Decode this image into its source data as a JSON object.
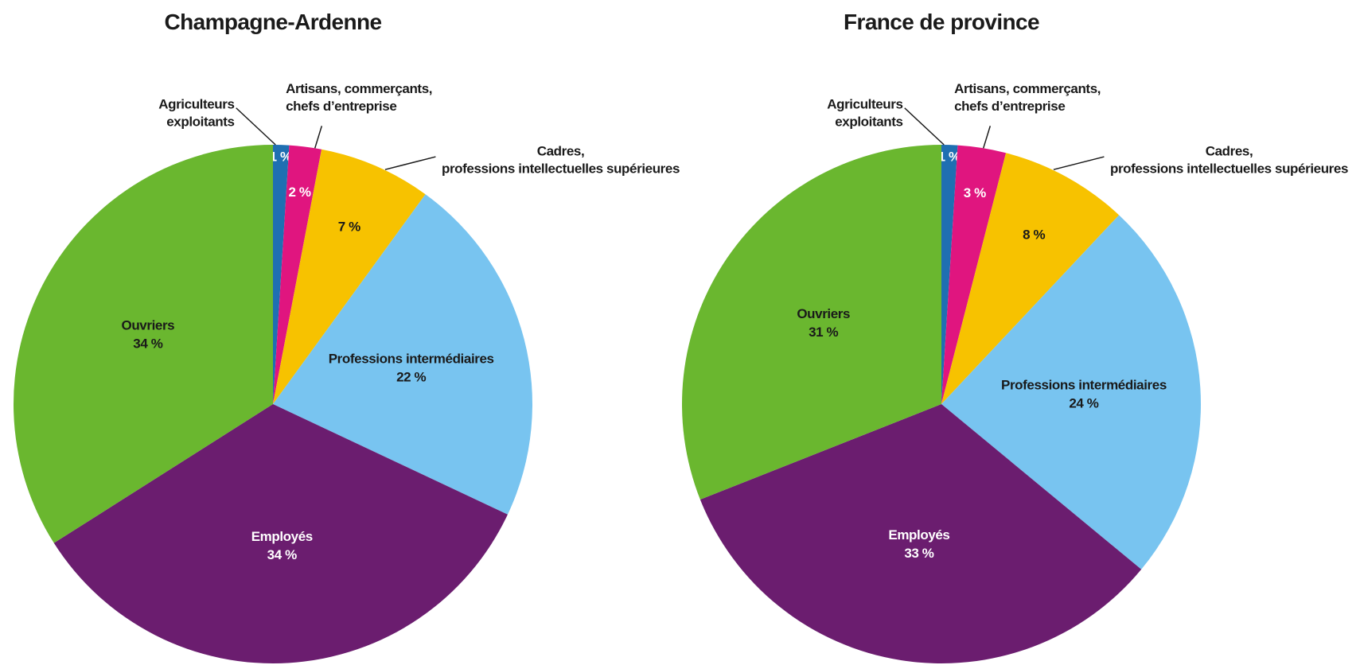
{
  "chart_data": [
    {
      "type": "pie",
      "title": "Champagne-Ardenne",
      "categories": [
        "Agriculteurs\nexploitants",
        "Artisans, commerçants,\nchefs d’entreprise",
        "Cadres,\nprofessions intellectuelles supérieures",
        "Professions intermédiaires",
        "Employés",
        "Ouvriers"
      ],
      "values": [
        1,
        2,
        7,
        22,
        34,
        34
      ],
      "value_labels": [
        "1 %",
        "2 %",
        "7 %",
        "22 %",
        "34 %",
        "34 %"
      ],
      "colors": [
        "#1f6fb2",
        "#e0157f",
        "#f7c200",
        "#78c4f0",
        "#6b1d6f",
        "#6ab72f"
      ]
    },
    {
      "type": "pie",
      "title": "France de province",
      "categories": [
        "Agriculteurs\nexploitants",
        "Artisans, commerçants,\nchefs d’entreprise",
        "Cadres,\nprofessions intellectuelles supérieures",
        "Professions intermédiaires",
        "Employés",
        "Ouvriers"
      ],
      "values": [
        1,
        3,
        8,
        24,
        33,
        31
      ],
      "value_labels": [
        "1 %",
        "3 %",
        "8 %",
        "24 %",
        "33 %",
        "31 %"
      ],
      "colors": [
        "#1f6fb2",
        "#e0157f",
        "#f7c200",
        "#78c4f0",
        "#6b1d6f",
        "#6ab72f"
      ]
    }
  ]
}
